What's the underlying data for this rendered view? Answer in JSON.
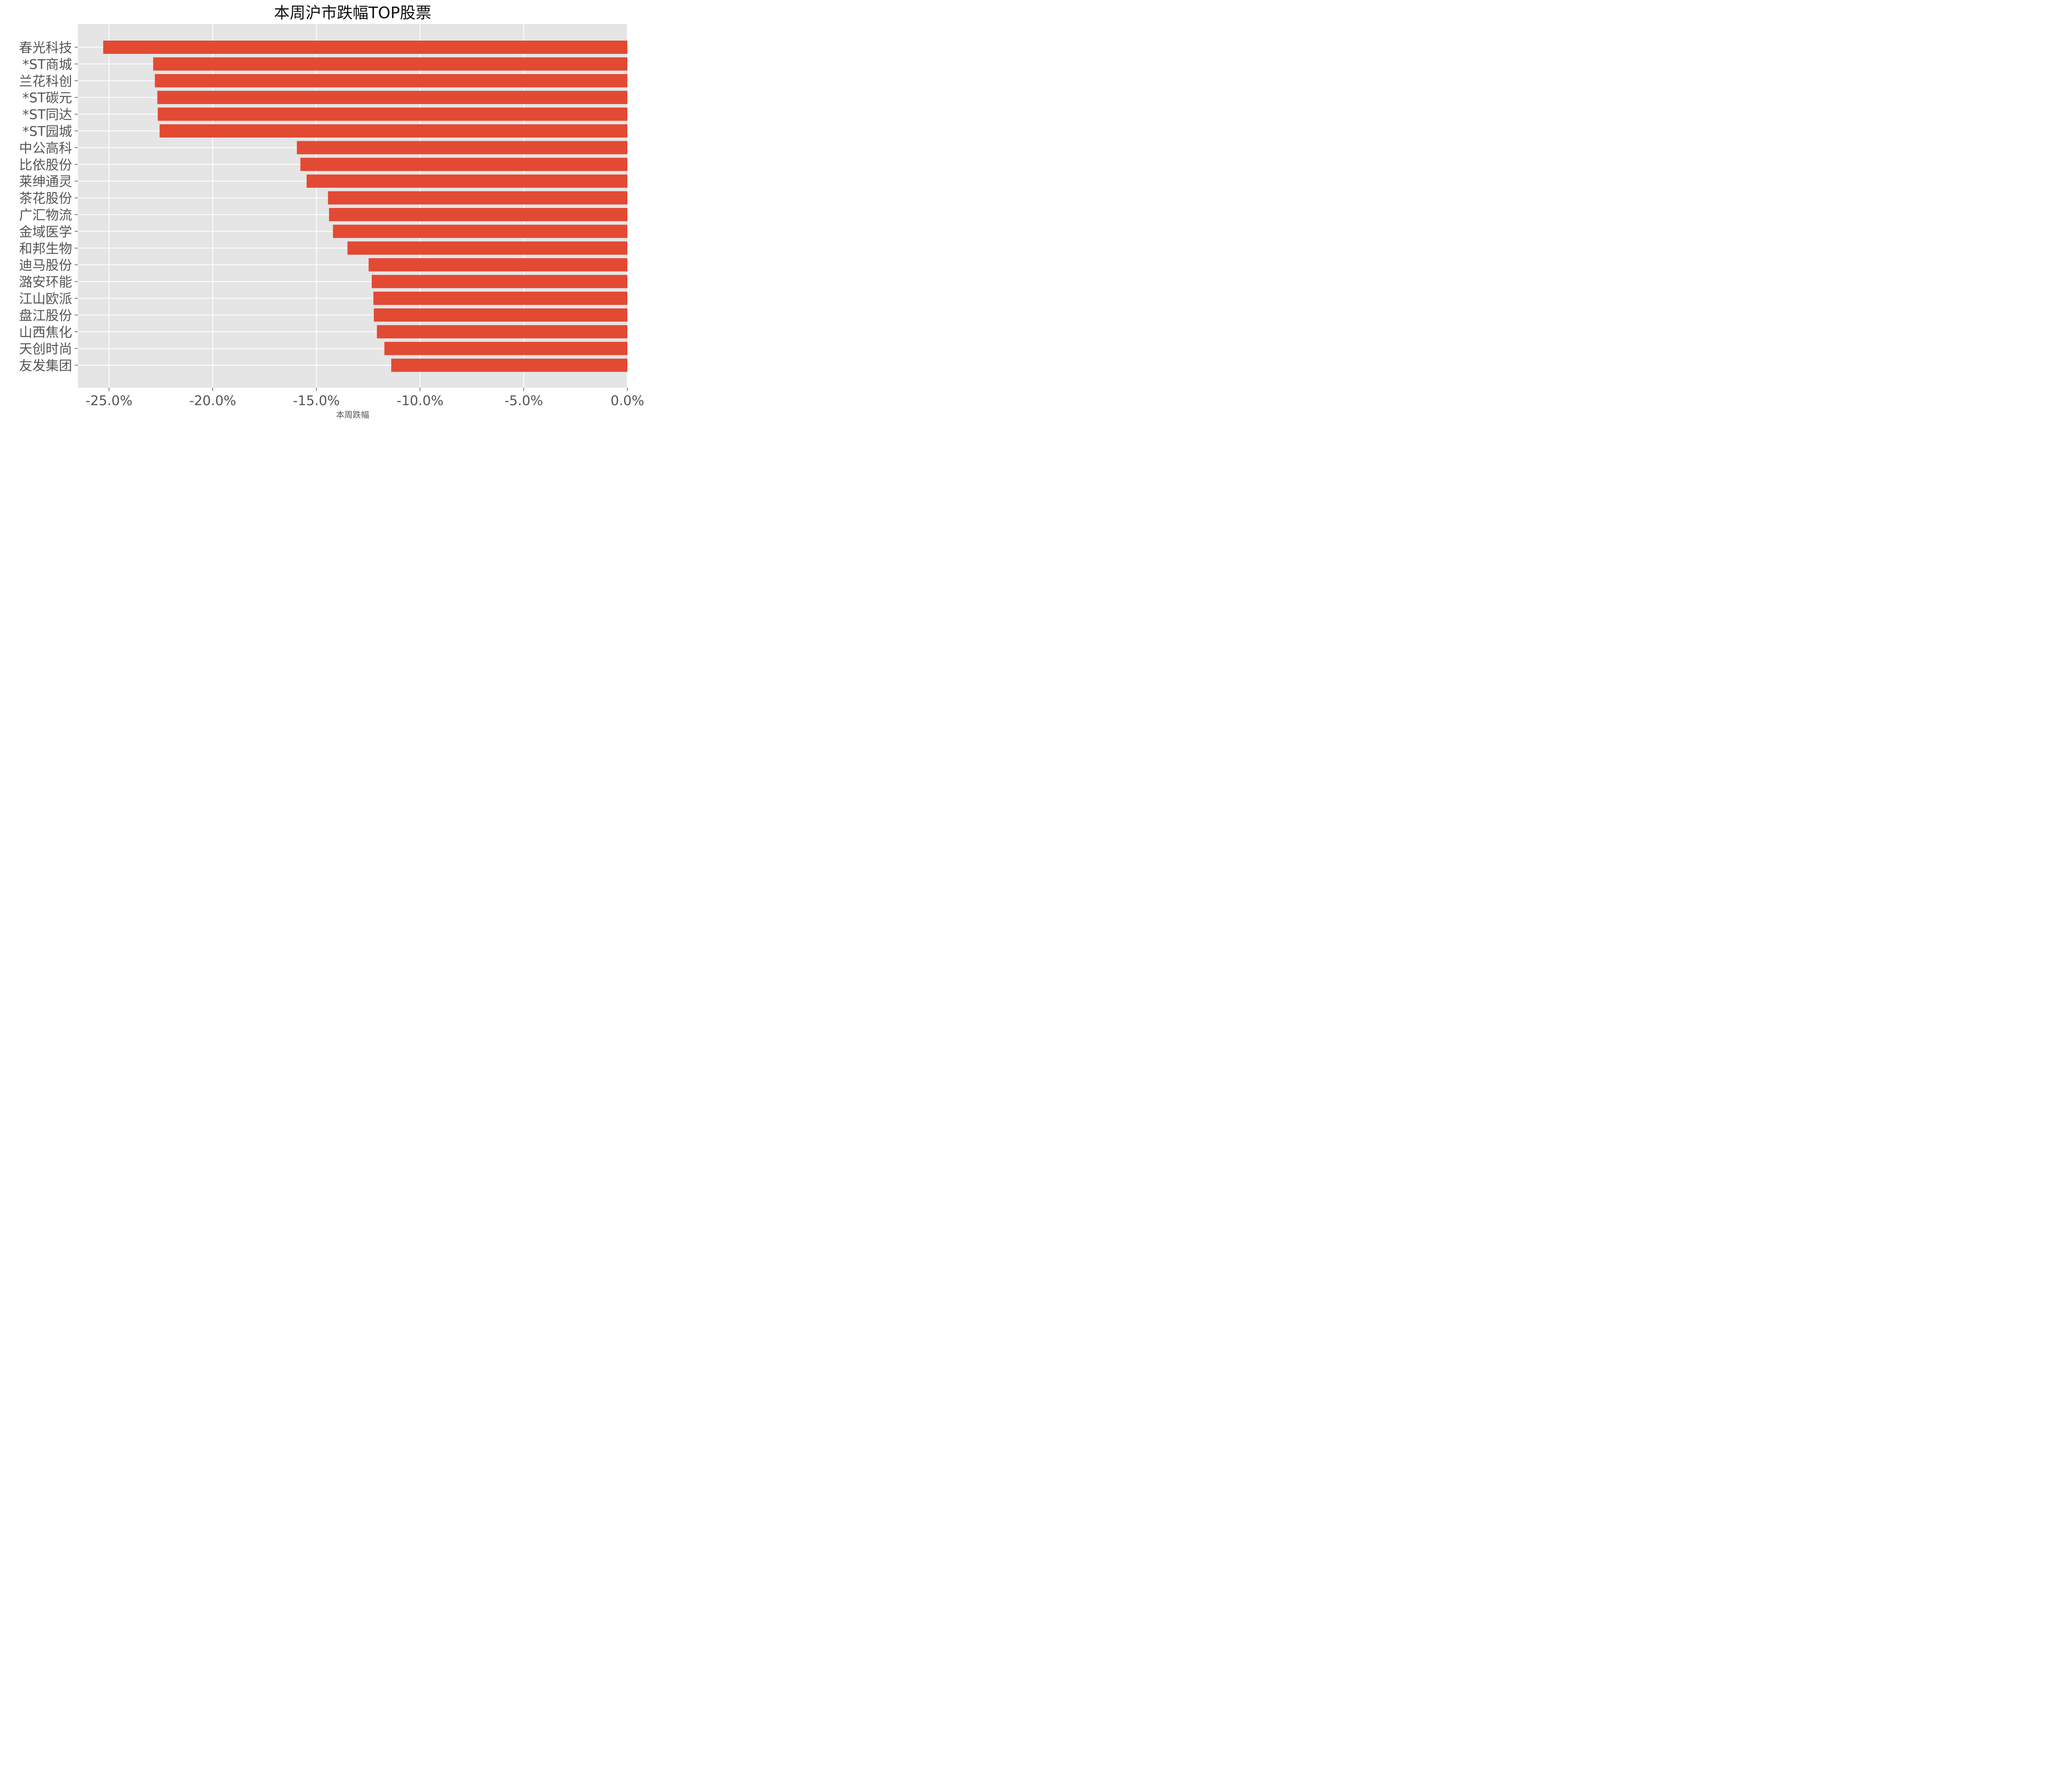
{
  "chart_data": {
    "type": "bar",
    "orientation": "horizontal",
    "title": "本周沪市跌幅TOP股票",
    "xlabel": "本周跌幅",
    "ylabel": "",
    "categories": [
      "春光科技",
      "*ST商城",
      "兰花科创",
      "*ST碳元",
      "*ST同达",
      "*ST园城",
      "中公高科",
      "比依股份",
      "莱绅通灵",
      "茶花股份",
      "广汇物流",
      "金域医学",
      "和邦生物",
      "迪马股份",
      "潞安环能",
      "江山欧派",
      "盘江股份",
      "山西焦化",
      "天创时尚",
      "友发集团"
    ],
    "values": [
      -25.28,
      -22.87,
      -22.79,
      -22.67,
      -22.65,
      -22.56,
      -15.94,
      -15.77,
      -15.47,
      -14.44,
      -14.39,
      -14.2,
      -13.5,
      -12.48,
      -12.33,
      -12.25,
      -12.23,
      -12.08,
      -11.72,
      -11.39
    ],
    "xlim": [
      -26.5,
      0
    ],
    "xticks": [
      -25,
      -20,
      -15,
      -10,
      -5,
      0
    ],
    "xtick_labels": [
      "-25.0%",
      "-20.0%",
      "-15.0%",
      "-10.0%",
      "-5.0%",
      "0.0%"
    ],
    "grid": true,
    "colors": {
      "bar": "#E24A33",
      "background": "#E5E5E5",
      "grid": "#FFFFFF"
    }
  }
}
